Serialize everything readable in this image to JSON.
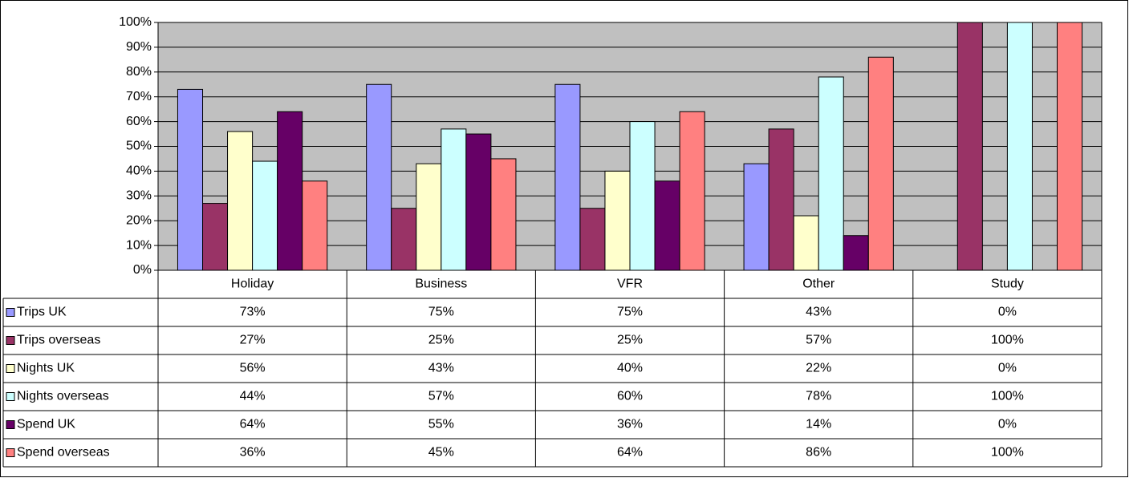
{
  "chart_data": {
    "type": "bar",
    "categories": [
      "Holiday",
      "Business",
      "VFR",
      "Other",
      "Study"
    ],
    "series": [
      {
        "name": "Trips UK",
        "color": "#9999ff",
        "values": [
          73,
          75,
          75,
          43,
          0
        ],
        "value_labels": [
          "73%",
          "75%",
          "75%",
          "43%",
          "0%"
        ]
      },
      {
        "name": "Trips overseas",
        "color": "#993366",
        "values": [
          27,
          25,
          25,
          57,
          100
        ],
        "value_labels": [
          "27%",
          "25%",
          "25%",
          "57%",
          "100%"
        ]
      },
      {
        "name": "Nights UK",
        "color": "#ffffcc",
        "values": [
          56,
          43,
          40,
          22,
          0
        ],
        "value_labels": [
          "56%",
          "43%",
          "40%",
          "22%",
          "0%"
        ]
      },
      {
        "name": "Nights overseas",
        "color": "#ccffff",
        "values": [
          44,
          57,
          60,
          78,
          100
        ],
        "value_labels": [
          "44%",
          "57%",
          "60%",
          "78%",
          "100%"
        ]
      },
      {
        "name": "Spend UK",
        "color": "#660066",
        "values": [
          64,
          55,
          36,
          14,
          0
        ],
        "value_labels": [
          "64%",
          "55%",
          "36%",
          "14%",
          "0%"
        ]
      },
      {
        "name": "Spend overseas",
        "color": "#ff8080",
        "values": [
          36,
          45,
          64,
          86,
          100
        ],
        "value_labels": [
          "36%",
          "45%",
          "64%",
          "86%",
          "100%"
        ]
      }
    ],
    "ylim": [
      0,
      100
    ],
    "yticks": [
      {
        "value": 0,
        "label": "0%"
      },
      {
        "value": 10,
        "label": "10%"
      },
      {
        "value": 20,
        "label": "20%"
      },
      {
        "value": 30,
        "label": "30%"
      },
      {
        "value": 40,
        "label": "40%"
      },
      {
        "value": 50,
        "label": "50%"
      },
      {
        "value": 60,
        "label": "60%"
      },
      {
        "value": 70,
        "label": "70%"
      },
      {
        "value": 80,
        "label": "80%"
      },
      {
        "value": 90,
        "label": "90%"
      },
      {
        "value": 100,
        "label": "100%"
      }
    ],
    "grid": true,
    "plot_background": "#c0c0c0"
  }
}
